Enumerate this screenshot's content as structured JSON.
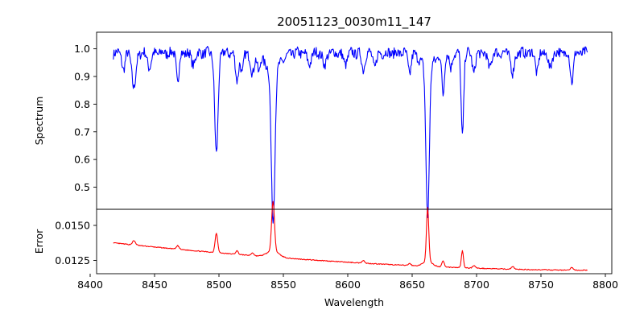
{
  "chart_data": [
    {
      "type": "line",
      "panel": "top",
      "title": "20051123_0030m11_147",
      "xlabel": "",
      "ylabel": "Spectrum",
      "xlim": [
        8405,
        8805
      ],
      "ylim": [
        0.42,
        1.06
      ],
      "xticks": [],
      "yticks": [
        {
          "v": 1.0,
          "label": "1.0"
        },
        {
          "v": 0.9,
          "label": "0.9"
        },
        {
          "v": 0.8,
          "label": "0.8"
        },
        {
          "v": 0.7,
          "label": "0.7"
        },
        {
          "v": 0.6,
          "label": "0.6"
        },
        {
          "v": 0.5,
          "label": "0.5"
        }
      ],
      "color": "#0000ff",
      "x_start": 8418,
      "x_end": 8786,
      "continuum": 0.985,
      "noise": 0.018,
      "lines": [
        {
          "c": 8434,
          "d": 0.13,
          "w": 1.5
        },
        {
          "c": 8426,
          "d": 0.06,
          "w": 1.2
        },
        {
          "c": 8446,
          "d": 0.05,
          "w": 1.5
        },
        {
          "c": 8468,
          "d": 0.11,
          "w": 1.0
        },
        {
          "c": 8480,
          "d": 0.04,
          "w": 1.5
        },
        {
          "c": 8498,
          "d": 0.37,
          "w": 1.3
        },
        {
          "c": 8514,
          "d": 0.1,
          "w": 1.2
        },
        {
          "c": 8518,
          "d": 0.08,
          "w": 1.0
        },
        {
          "c": 8526,
          "d": 0.08,
          "w": 1.3
        },
        {
          "c": 8531,
          "d": 0.06,
          "w": 1.0
        },
        {
          "c": 8542,
          "d": 0.55,
          "w": 1.4
        },
        {
          "c": 8542,
          "d": 0.06,
          "w": 6.0
        },
        {
          "c": 8570,
          "d": 0.04,
          "w": 1.5
        },
        {
          "c": 8582,
          "d": 0.05,
          "w": 1.2
        },
        {
          "c": 8598,
          "d": 0.04,
          "w": 1.5
        },
        {
          "c": 8612,
          "d": 0.06,
          "w": 1.2
        },
        {
          "c": 8621,
          "d": 0.05,
          "w": 1.3
        },
        {
          "c": 8648,
          "d": 0.07,
          "w": 1.2
        },
        {
          "c": 8662,
          "d": 0.54,
          "w": 1.3
        },
        {
          "c": 8662,
          "d": 0.05,
          "w": 5.0
        },
        {
          "c": 8674,
          "d": 0.15,
          "w": 1.0
        },
        {
          "c": 8680,
          "d": 0.06,
          "w": 1.0
        },
        {
          "c": 8689,
          "d": 0.3,
          "w": 1.0
        },
        {
          "c": 8698,
          "d": 0.07,
          "w": 1.2
        },
        {
          "c": 8710,
          "d": 0.05,
          "w": 1.5
        },
        {
          "c": 8728,
          "d": 0.08,
          "w": 1.2
        },
        {
          "c": 8747,
          "d": 0.07,
          "w": 1.2
        },
        {
          "c": 8757,
          "d": 0.06,
          "w": 1.2
        },
        {
          "c": 8774,
          "d": 0.1,
          "w": 1.2
        }
      ]
    },
    {
      "type": "line",
      "panel": "bottom",
      "title": "",
      "xlabel": "Wavelength",
      "ylabel": "Error",
      "xlim": [
        8405,
        8805
      ],
      "ylim": [
        0.01155,
        0.01615
      ],
      "xticks": [
        {
          "v": 8400,
          "label": "8400"
        },
        {
          "v": 8450,
          "label": "8450"
        },
        {
          "v": 8500,
          "label": "8500"
        },
        {
          "v": 8550,
          "label": "8550"
        },
        {
          "v": 8600,
          "label": "8600"
        },
        {
          "v": 8650,
          "label": "8650"
        },
        {
          "v": 8700,
          "label": "8700"
        },
        {
          "v": 8750,
          "label": "8750"
        },
        {
          "v": 8800,
          "label": "8800"
        }
      ],
      "yticks": [
        {
          "v": 0.015,
          "label": "0.0150"
        },
        {
          "v": 0.0125,
          "label": "0.0125"
        }
      ],
      "color": "#ff0000",
      "x_start": 8418,
      "x_end": 8786,
      "base_start": 0.01375,
      "base_end": 0.0118,
      "noise": 3e-05,
      "peaks": [
        {
          "c": 8434,
          "h": 0.0003,
          "w": 1.2
        },
        {
          "c": 8468,
          "h": 0.00025,
          "w": 1.0
        },
        {
          "c": 8498,
          "h": 0.0014,
          "w": 1.0
        },
        {
          "c": 8514,
          "h": 0.00025,
          "w": 1.0
        },
        {
          "c": 8526,
          "h": 0.0002,
          "w": 1.0
        },
        {
          "c": 8542,
          "h": 0.00355,
          "w": 1.1
        },
        {
          "c": 8542,
          "h": 0.00045,
          "w": 4.5
        },
        {
          "c": 8612,
          "h": 0.0002,
          "w": 1.0
        },
        {
          "c": 8648,
          "h": 0.00015,
          "w": 1.0
        },
        {
          "c": 8662,
          "h": 0.00385,
          "w": 0.9
        },
        {
          "c": 8662,
          "h": 0.00035,
          "w": 3.5
        },
        {
          "c": 8674,
          "h": 0.00045,
          "w": 0.9
        },
        {
          "c": 8689,
          "h": 0.0012,
          "w": 0.8
        },
        {
          "c": 8698,
          "h": 0.0002,
          "w": 1.0
        },
        {
          "c": 8728,
          "h": 0.0002,
          "w": 1.0
        },
        {
          "c": 8774,
          "h": 0.0002,
          "w": 1.0
        }
      ]
    }
  ]
}
